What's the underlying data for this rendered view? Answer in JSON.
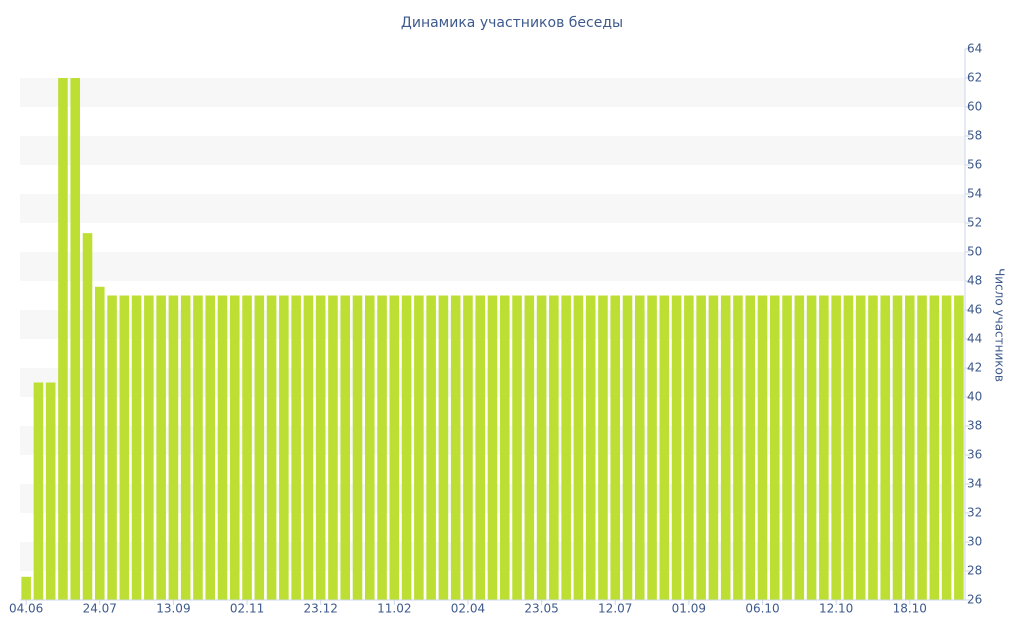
{
  "chart_data": {
    "type": "bar",
    "title": "Динамика участников беседы",
    "y_axis_label": "Число участников",
    "categories": [
      "04.06",
      null,
      null,
      null,
      null,
      null,
      "24.07",
      null,
      null,
      null,
      null,
      null,
      "13.09",
      null,
      null,
      null,
      null,
      null,
      "02.11",
      null,
      null,
      null,
      null,
      null,
      "23.12",
      null,
      null,
      null,
      null,
      null,
      "11.02",
      null,
      null,
      null,
      null,
      null,
      "02.04",
      null,
      null,
      null,
      null,
      null,
      "23.05",
      null,
      null,
      null,
      null,
      null,
      "12.07",
      null,
      null,
      null,
      null,
      null,
      "01.09",
      null,
      null,
      null,
      null,
      null,
      "06.10",
      null,
      null,
      null,
      null,
      null,
      "12.10",
      null,
      null,
      null,
      null,
      null,
      "18.10",
      null,
      null,
      null,
      null
    ],
    "values": [
      27.6,
      41,
      41,
      62,
      62,
      51.3,
      47.6,
      47,
      47,
      47,
      47,
      47,
      47,
      47,
      47,
      47,
      47,
      47,
      47,
      47,
      47,
      47,
      47,
      47,
      47,
      47,
      47,
      47,
      47,
      47,
      47,
      47,
      47,
      47,
      47,
      47,
      47,
      47,
      47,
      47,
      47,
      47,
      47,
      47,
      47,
      47,
      47,
      47,
      47,
      47,
      47,
      47,
      47,
      47,
      47,
      47,
      47,
      47,
      47,
      47,
      47,
      47,
      47,
      47,
      47,
      47,
      47,
      47,
      47,
      47,
      47,
      47,
      47,
      47,
      47,
      47,
      47
    ],
    "color": "#bddf33",
    "ylim": [
      26,
      64
    ],
    "yticks": [
      26,
      28,
      30,
      32,
      34,
      36,
      38,
      40,
      42,
      44,
      46,
      48,
      50,
      52,
      54,
      56,
      58,
      60,
      62,
      64
    ],
    "grid": "bands",
    "y_axis_side": "right"
  }
}
